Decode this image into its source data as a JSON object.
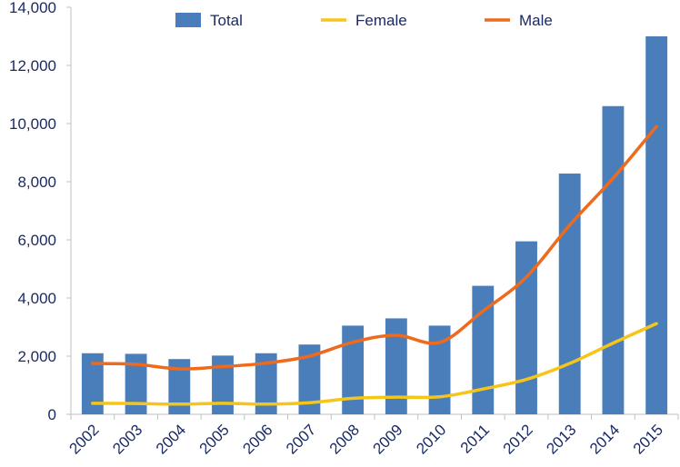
{
  "chart_data": {
    "type": "bar",
    "categories": [
      "2002",
      "2003",
      "2004",
      "2005",
      "2006",
      "2007",
      "2008",
      "2009",
      "2010",
      "2011",
      "2012",
      "2013",
      "2014",
      "2015"
    ],
    "series": [
      {
        "name": "Total",
        "type": "bar",
        "color": "#4a7ebb",
        "values": [
          2100,
          2080,
          1900,
          2020,
          2100,
          2400,
          3050,
          3300,
          3050,
          4420,
          5950,
          8280,
          10600,
          13000
        ]
      },
      {
        "name": "Female",
        "type": "line",
        "color": "#f5c518",
        "values": [
          380,
          370,
          350,
          380,
          350,
          400,
          550,
          590,
          600,
          870,
          1200,
          1750,
          2450,
          3120
        ]
      },
      {
        "name": "Male",
        "type": "line",
        "color": "#ee6a1c",
        "values": [
          1750,
          1720,
          1560,
          1640,
          1760,
          2000,
          2480,
          2720,
          2470,
          3550,
          4720,
          6510,
          8120,
          9900
        ]
      }
    ],
    "ylim": [
      0,
      14000
    ],
    "yticks": [
      0,
      2000,
      4000,
      6000,
      8000,
      10000,
      12000,
      14000
    ],
    "ytick_labels": [
      "0",
      "2,000",
      "4,000",
      "6,000",
      "8,000",
      "10,000",
      "12,000",
      "14,000"
    ],
    "grid": false,
    "legend": "top-center",
    "title": "",
    "xlabel": "",
    "ylabel": ""
  }
}
